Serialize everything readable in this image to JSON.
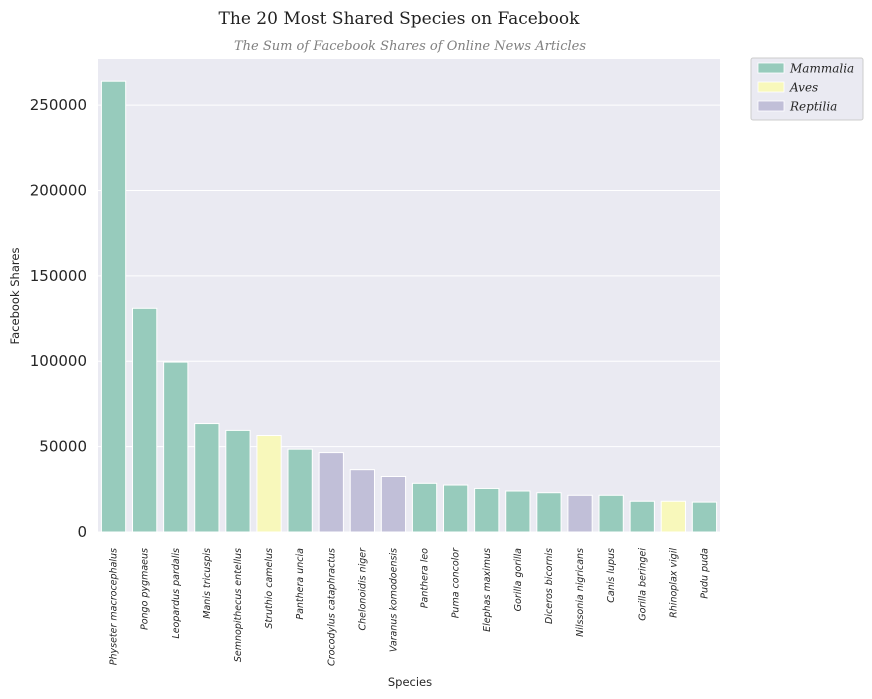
{
  "chart_data": {
    "type": "bar",
    "title": "The 20 Most Shared Species on Facebook",
    "subtitle": "The Sum of Facebook Shares of Online News Articles",
    "xlabel": "Species",
    "ylabel": "Facebook Shares",
    "ylim": [
      0,
      277000
    ],
    "yticks": [
      0,
      50000,
      100000,
      150000,
      200000,
      250000
    ],
    "grid": true,
    "legend_position": "outside-top-right",
    "categories": [
      "Physeter macrocephalus",
      "Pongo pygmaeus",
      "Leopardus pardalis",
      "Manis tricuspis",
      "Semnopithecus entellus",
      "Struthio camelus",
      "Panthera uncia",
      "Crocodylus cataphractus",
      "Chelonoidis niger",
      "Varanus komodoensis",
      "Panthera leo",
      "Puma concolor",
      "Elephas maximus",
      "Gorilla gorilla",
      "Diceros bicornis",
      "Nilssonia nigricans",
      "Canis lupus",
      "Gorilla beringei",
      "Rhinoplax vigil",
      "Pudu puda"
    ],
    "values": [
      264000,
      131000,
      99500,
      63500,
      59500,
      56500,
      48500,
      46500,
      36500,
      32500,
      28500,
      27500,
      25500,
      24000,
      23000,
      21500,
      21500,
      18000,
      18000,
      17500
    ],
    "classes": [
      "Mammalia",
      "Mammalia",
      "Mammalia",
      "Mammalia",
      "Mammalia",
      "Aves",
      "Mammalia",
      "Reptilia",
      "Reptilia",
      "Reptilia",
      "Mammalia",
      "Mammalia",
      "Mammalia",
      "Mammalia",
      "Mammalia",
      "Reptilia",
      "Mammalia",
      "Mammalia",
      "Aves",
      "Mammalia"
    ],
    "legend": [
      {
        "name": "Mammalia",
        "color": "#97cbbc"
      },
      {
        "name": "Aves",
        "color": "#f8f8bb"
      },
      {
        "name": "Reptilia",
        "color": "#c1bfd8"
      }
    ],
    "colors": {
      "Mammalia": "#97cbbc",
      "Aves": "#f8f8bb",
      "Reptilia": "#c1bfd8",
      "plot_background": "#eaeaf2",
      "grid": "#ffffff"
    }
  }
}
